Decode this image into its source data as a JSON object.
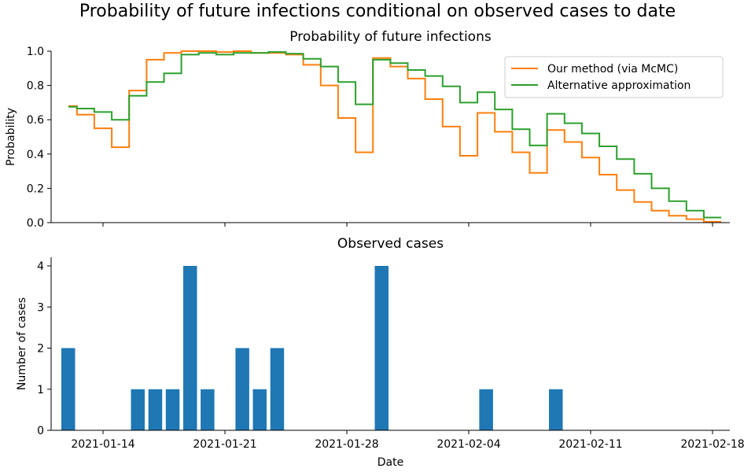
{
  "figure": {
    "title": "Probability of future infections conditional on observed cases to date"
  },
  "colors": {
    "ours": "#ff7f0e",
    "alt": "#2ca02c",
    "bars": "#1f77b4"
  },
  "chart_data": [
    {
      "type": "line",
      "subtype": "step",
      "title": "Probability of future infections",
      "xlabel": "",
      "ylabel": "Probability",
      "xlim": [
        "2021-01-11",
        "2021-02-18"
      ],
      "ylim": [
        0,
        1.0
      ],
      "yticks": [
        0.0,
        0.2,
        0.4,
        0.6,
        0.8,
        1.0
      ],
      "ytick_labels": [
        "0.0",
        "0.2",
        "0.4",
        "0.6",
        "0.8",
        "1.0"
      ],
      "x_ticks_visible": false,
      "legend": "upper right",
      "x": [
        "2021-01-12",
        "2021-01-13",
        "2021-01-14",
        "2021-01-15",
        "2021-01-16",
        "2021-01-17",
        "2021-01-18",
        "2021-01-19",
        "2021-01-20",
        "2021-01-21",
        "2021-01-22",
        "2021-01-23",
        "2021-01-24",
        "2021-01-25",
        "2021-01-26",
        "2021-01-27",
        "2021-01-28",
        "2021-01-29",
        "2021-01-30",
        "2021-01-31",
        "2021-02-01",
        "2021-02-02",
        "2021-02-03",
        "2021-02-04",
        "2021-02-05",
        "2021-02-06",
        "2021-02-07",
        "2021-02-08",
        "2021-02-09",
        "2021-02-10",
        "2021-02-11",
        "2021-02-12",
        "2021-02-13",
        "2021-02-14",
        "2021-02-15",
        "2021-02-16",
        "2021-02-17",
        "2021-02-18"
      ],
      "series": [
        {
          "name": "Our method (via McMC)",
          "values": [
            0.68,
            0.63,
            0.55,
            0.44,
            0.77,
            0.95,
            0.99,
            1.0,
            1.0,
            0.995,
            1.0,
            0.99,
            0.99,
            0.98,
            0.92,
            0.8,
            0.61,
            0.41,
            0.96,
            0.91,
            0.84,
            0.72,
            0.56,
            0.39,
            0.64,
            0.53,
            0.41,
            0.29,
            0.54,
            0.47,
            0.38,
            0.28,
            0.19,
            0.12,
            0.07,
            0.04,
            0.02,
            0.005
          ]
        },
        {
          "name": "Alternative approximation",
          "values": [
            0.675,
            0.665,
            0.645,
            0.6,
            0.74,
            0.82,
            0.87,
            0.98,
            0.99,
            0.98,
            0.99,
            0.99,
            0.995,
            0.985,
            0.955,
            0.91,
            0.82,
            0.69,
            0.95,
            0.93,
            0.89,
            0.855,
            0.795,
            0.7,
            0.76,
            0.66,
            0.545,
            0.45,
            0.635,
            0.58,
            0.52,
            0.445,
            0.37,
            0.285,
            0.2,
            0.125,
            0.07,
            0.03
          ]
        }
      ]
    },
    {
      "type": "bar",
      "title": "Observed cases",
      "xlabel": "Date",
      "ylabel": "Number of cases",
      "xlim": [
        "2021-01-11",
        "2021-02-18"
      ],
      "ylim": [
        0,
        4
      ],
      "yticks": [
        0,
        1,
        2,
        3,
        4
      ],
      "ytick_labels": [
        "0",
        "1",
        "2",
        "3",
        "4"
      ],
      "xticks": [
        "2021-01-14",
        "2021-01-21",
        "2021-01-28",
        "2021-02-04",
        "2021-02-11",
        "2021-02-18"
      ],
      "categories": [
        "2021-01-12",
        "2021-01-16",
        "2021-01-17",
        "2021-01-18",
        "2021-01-19",
        "2021-01-20",
        "2021-01-22",
        "2021-01-23",
        "2021-01-24",
        "2021-01-30",
        "2021-02-05",
        "2021-02-09"
      ],
      "values": [
        2,
        1,
        1,
        1,
        4,
        1,
        2,
        1,
        2,
        4,
        1,
        1
      ]
    }
  ]
}
